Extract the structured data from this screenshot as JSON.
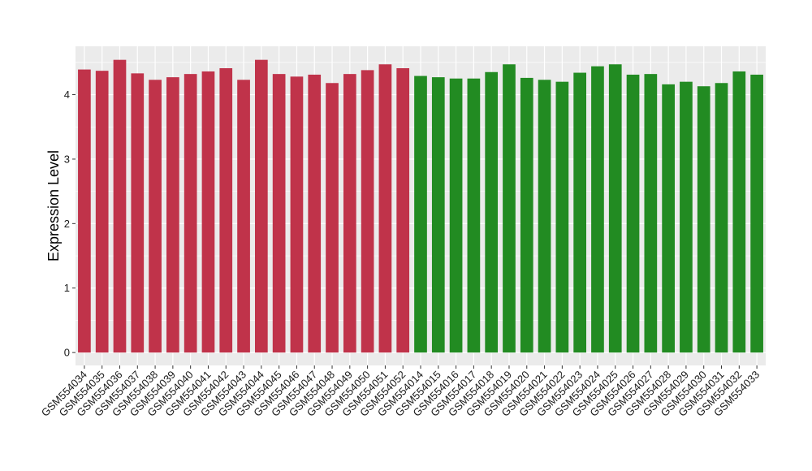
{
  "chart_data": {
    "type": "bar",
    "title": "",
    "xlabel": "",
    "ylabel": "Expression Level",
    "ylim": [
      -0.2,
      4.75
    ],
    "yticks": [
      0,
      1,
      2,
      3,
      4
    ],
    "grid": true,
    "legend": "none",
    "colors": {
      "group_a": "#C0334A",
      "group_b": "#228B22",
      "panel_bg": "#EBEBEB",
      "grid": "#FFFFFF"
    },
    "categories": [
      "GSM554034",
      "GSM554035",
      "GSM554036",
      "GSM554037",
      "GSM554038",
      "GSM554039",
      "GSM554040",
      "GSM554041",
      "GSM554042",
      "GSM554043",
      "GSM554044",
      "GSM554045",
      "GSM554046",
      "GSM554047",
      "GSM554048",
      "GSM554049",
      "GSM554050",
      "GSM554051",
      "GSM554052",
      "GSM554014",
      "GSM554015",
      "GSM554016",
      "GSM554017",
      "GSM554018",
      "GSM554019",
      "GSM554020",
      "GSM554021",
      "GSM554022",
      "GSM554023",
      "GSM554024",
      "GSM554025",
      "GSM554026",
      "GSM554027",
      "GSM554028",
      "GSM554029",
      "GSM554030",
      "GSM554031",
      "GSM554032",
      "GSM554033"
    ],
    "values": [
      4.39,
      4.37,
      4.54,
      4.33,
      4.23,
      4.27,
      4.32,
      4.36,
      4.41,
      4.23,
      4.54,
      4.32,
      4.28,
      4.31,
      4.18,
      4.32,
      4.38,
      4.47,
      4.41,
      4.29,
      4.27,
      4.25,
      4.25,
      4.35,
      4.47,
      4.26,
      4.23,
      4.2,
      4.34,
      4.44,
      4.47,
      4.31,
      4.32,
      4.16,
      4.2,
      4.13,
      4.18,
      4.36,
      4.31
    ],
    "groups": [
      "a",
      "a",
      "a",
      "a",
      "a",
      "a",
      "a",
      "a",
      "a",
      "a",
      "a",
      "a",
      "a",
      "a",
      "a",
      "a",
      "a",
      "a",
      "a",
      "b",
      "b",
      "b",
      "b",
      "b",
      "b",
      "b",
      "b",
      "b",
      "b",
      "b",
      "b",
      "b",
      "b",
      "b",
      "b",
      "b",
      "b",
      "b",
      "b"
    ]
  }
}
